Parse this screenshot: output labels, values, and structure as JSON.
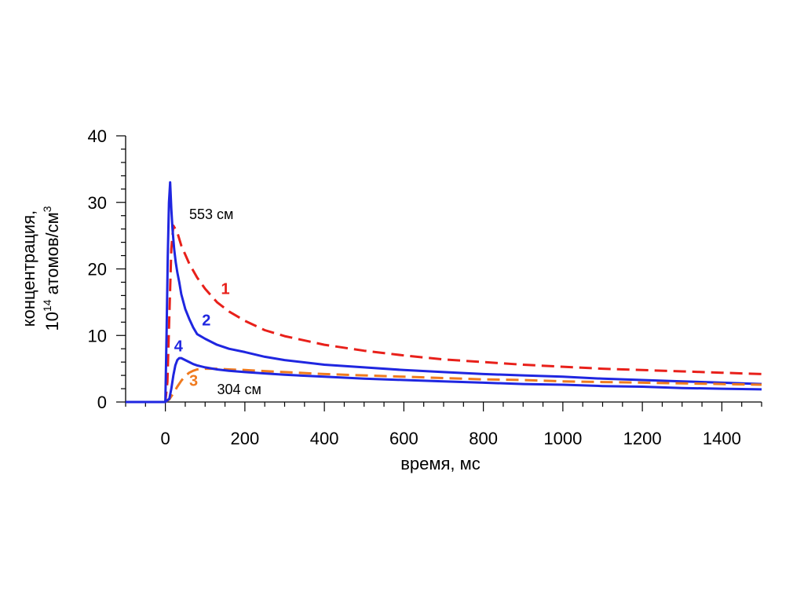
{
  "chart_data": {
    "type": "line",
    "xlabel": "время, мс",
    "ylabel_line1": "концентрация,",
    "ylabel_line2_prefix": "10",
    "ylabel_line2_sup": "14",
    "ylabel_line2_mid": " атомов/см",
    "ylabel_line2_sup2": "3",
    "xlim": [
      -100,
      1500
    ],
    "ylim": [
      0,
      40
    ],
    "x_ticks": [
      0,
      200,
      400,
      600,
      800,
      1000,
      1200,
      1400
    ],
    "y_ticks": [
      0,
      10,
      20,
      30,
      40
    ],
    "x_minor_step": 50,
    "y_minor_step": 2,
    "grid": false,
    "legend": "none",
    "annotations": [
      {
        "text": "553 см",
        "x": 60,
        "y": 27.5
      },
      {
        "text": "304 см",
        "x": 130,
        "y": 1.2
      }
    ],
    "series": [
      {
        "label": "1",
        "color": "#e8201a",
        "style": "dashed",
        "label_at": [
          140,
          16.2
        ],
        "x": [
          -100,
          0,
          5,
          10,
          15,
          20,
          30,
          40,
          60,
          80,
          100,
          130,
          160,
          200,
          250,
          300,
          400,
          500,
          600,
          700,
          800,
          900,
          1000,
          1100,
          1200,
          1300,
          1400,
          1500
        ],
        "y": [
          0,
          0,
          3,
          13,
          23,
          26.5,
          25.5,
          23.5,
          20.8,
          18.7,
          17,
          15,
          13.6,
          12.2,
          10.8,
          9.9,
          8.6,
          7.7,
          7.0,
          6.4,
          6.0,
          5.6,
          5.3,
          5.0,
          4.8,
          4.6,
          4.4,
          4.2
        ]
      },
      {
        "label": "2",
        "color": "#1f26e0",
        "style": "solid",
        "label_at": [
          92,
          11.5
        ],
        "x": [
          -100,
          0,
          3,
          6,
          9,
          12,
          15,
          18,
          22,
          26,
          30,
          35,
          40,
          50,
          60,
          70,
          80,
          100,
          130,
          160,
          200,
          250,
          300,
          400,
          500,
          600,
          700,
          800,
          900,
          1000,
          1100,
          1200,
          1300,
          1400,
          1500
        ],
        "y": [
          0,
          0,
          10,
          22,
          30,
          33,
          29,
          26,
          23,
          21,
          19.5,
          18,
          16.2,
          14,
          12.5,
          11.2,
          10.2,
          9.5,
          8.6,
          8.0,
          7.5,
          6.8,
          6.3,
          5.6,
          5.2,
          4.8,
          4.5,
          4.2,
          4.0,
          3.8,
          3.5,
          3.3,
          3.1,
          2.9,
          2.7
        ]
      },
      {
        "label": "3",
        "color": "#f07a1e",
        "style": "dashed",
        "label_at": [
          60,
          2.4
        ],
        "x": [
          -100,
          0,
          10,
          20,
          30,
          40,
          50,
          60,
          70,
          80,
          100,
          130,
          160,
          200,
          300,
          400,
          500,
          600,
          700,
          800,
          900,
          1000,
          1100,
          1200,
          1300,
          1400,
          1500
        ],
        "y": [
          0,
          0,
          0.4,
          1.3,
          2.3,
          3.2,
          3.9,
          4.4,
          4.7,
          4.9,
          5.0,
          5.0,
          4.9,
          4.8,
          4.5,
          4.2,
          4.0,
          3.8,
          3.6,
          3.4,
          3.3,
          3.1,
          3.0,
          2.9,
          2.8,
          2.7,
          2.6
        ]
      },
      {
        "label": "4",
        "color": "#1f26e0",
        "style": "solid",
        "label_at": [
          22,
          7.6
        ],
        "x": [
          -100,
          0,
          10,
          15,
          20,
          25,
          30,
          35,
          40,
          50,
          60,
          70,
          80,
          100,
          130,
          160,
          200,
          250,
          300,
          400,
          500,
          600,
          700,
          800,
          900,
          1000,
          1100,
          1200,
          1300,
          1400,
          1500
        ],
        "y": [
          0,
          0,
          0.5,
          2,
          4,
          5.5,
          6.3,
          6.6,
          6.6,
          6.3,
          6.0,
          5.7,
          5.5,
          5.2,
          4.9,
          4.7,
          4.5,
          4.3,
          4.1,
          3.8,
          3.5,
          3.3,
          3.1,
          2.9,
          2.7,
          2.6,
          2.4,
          2.3,
          2.1,
          2.0,
          1.9
        ]
      }
    ]
  }
}
